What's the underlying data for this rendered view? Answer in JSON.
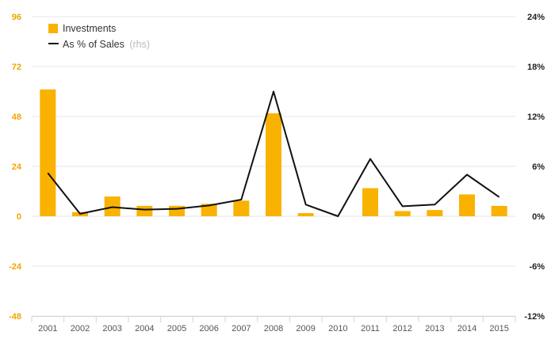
{
  "chart_data": {
    "type": "bar",
    "categories": [
      "2001",
      "2002",
      "2003",
      "2004",
      "2005",
      "2006",
      "2007",
      "2008",
      "2009",
      "2010",
      "2011",
      "2012",
      "2013",
      "2014",
      "2015"
    ],
    "series": [
      {
        "name": "Investments",
        "type": "bar",
        "axis": "left",
        "values": [
          61,
          2,
          9.5,
          5,
          5,
          6,
          7.5,
          49.5,
          1.5,
          0,
          13.5,
          2.5,
          3,
          10.5,
          5
        ]
      },
      {
        "name": "As % of Sales",
        "name_note": "(rhs)",
        "type": "line",
        "axis": "right",
        "values": [
          5.2,
          0.3,
          1.1,
          0.8,
          0.9,
          1.3,
          2.0,
          15.0,
          1.4,
          0.0,
          6.9,
          1.2,
          1.4,
          5.0,
          2.3
        ]
      }
    ],
    "left_axis": {
      "ticks": [
        96,
        72,
        48,
        24,
        0,
        -24,
        -48
      ],
      "tick_labels": [
        "96",
        "72",
        "48",
        "24",
        "0",
        "-24",
        "-48"
      ],
      "range": [
        -48,
        96
      ]
    },
    "right_axis": {
      "ticks": [
        24,
        18,
        12,
        6,
        0,
        -6,
        -12
      ],
      "tick_labels": [
        "24%",
        "18%",
        "12%",
        "6%",
        "0%",
        "-6%",
        "-12%"
      ],
      "range": [
        -12,
        24
      ]
    },
    "grid": true,
    "legend": "top-left",
    "colors": {
      "bar": "#f9b200",
      "line": "#111111",
      "grid": "#e6e6e6",
      "left_ticks": "#f0a500",
      "right_ticks": "#222222"
    }
  }
}
